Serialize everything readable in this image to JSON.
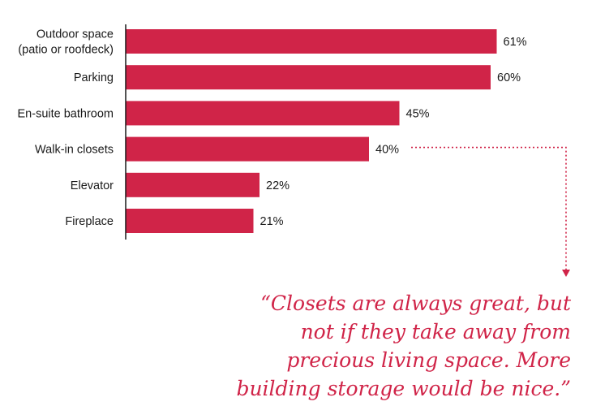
{
  "chart_data": {
    "type": "bar",
    "orientation": "horizontal",
    "title": "",
    "xlabel": "",
    "ylabel": "",
    "categories": [
      [
        "Outdoor space",
        "(patio or roofdeck)"
      ],
      [
        "Parking"
      ],
      [
        "En-suite bathroom"
      ],
      [
        "Walk-in closets"
      ],
      [
        "Elevator"
      ],
      [
        "Fireplace"
      ]
    ],
    "values": [
      61,
      60,
      45,
      40,
      22,
      21
    ],
    "value_labels": [
      "61%",
      "60%",
      "45%",
      "40%",
      "22%",
      "21%"
    ],
    "xlim": [
      0,
      100
    ],
    "grid": false,
    "bar_color": "#d02448",
    "annotation": {
      "target_category": "Walk-in closets",
      "arrow_color": "#d02448",
      "quote_lines": [
        "“Closets are always great, but",
        "not if they take away from",
        "precious living space. More",
        "building storage would be nice.”"
      ]
    }
  }
}
